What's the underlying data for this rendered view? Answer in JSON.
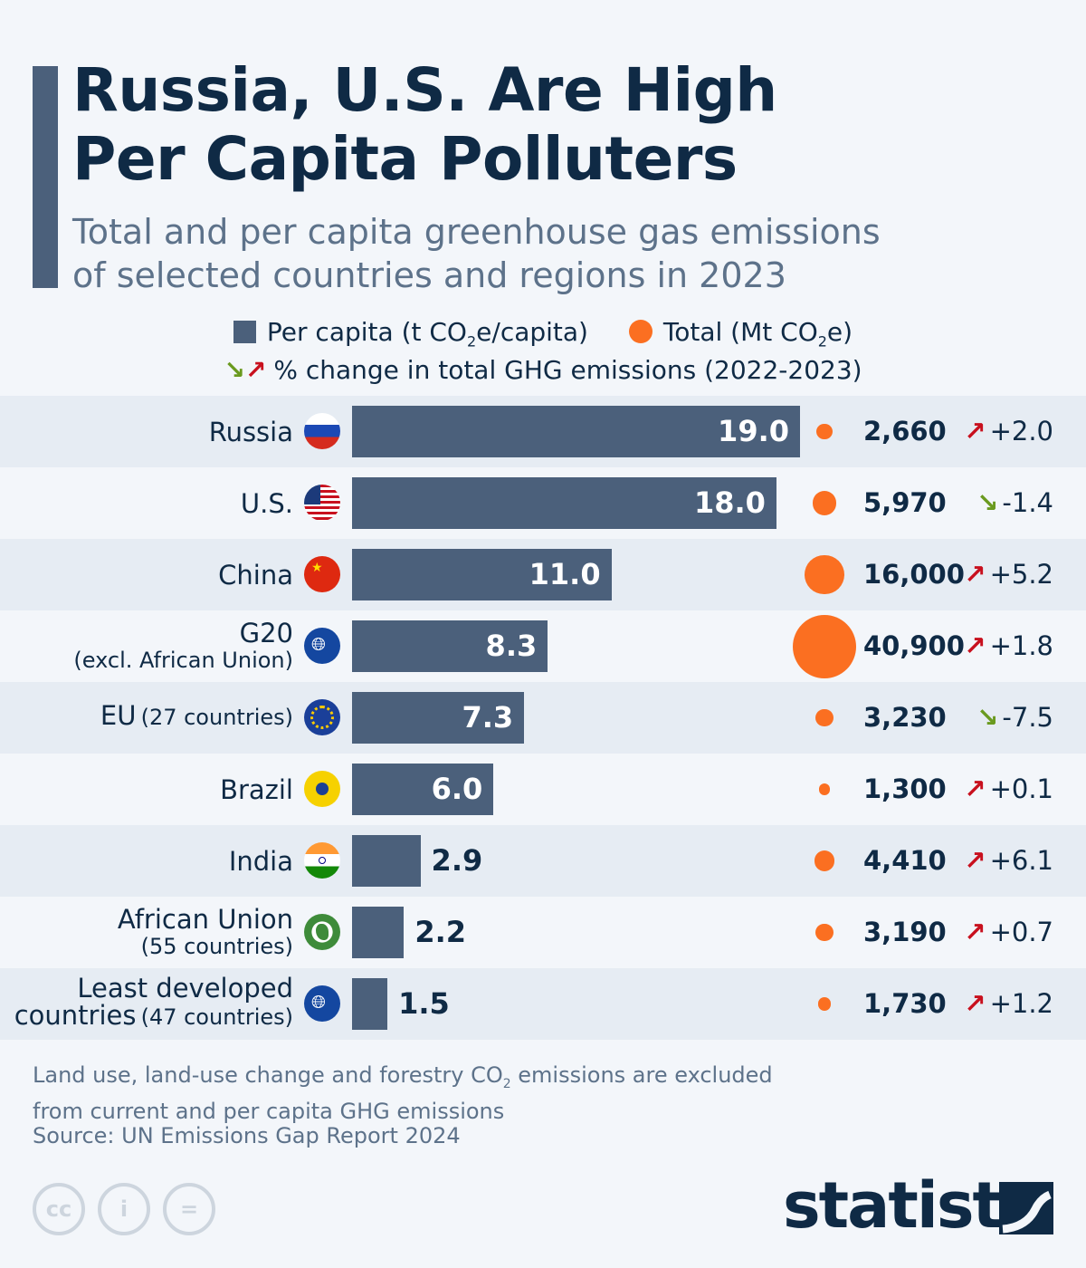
{
  "header": {
    "title_line1": "Russia, U.S. Are High",
    "title_line2": "Per Capita Polluters",
    "subtitle_line1": "Total and per capita greenhouse gas emissions",
    "subtitle_line2": "of selected countries and regions in 2023"
  },
  "legend": {
    "per_capita_pre": "Per capita (t CO",
    "per_capita_sub": "2",
    "per_capita_post": "e/capita)",
    "total_pre": "Total (Mt CO",
    "total_sub": "2",
    "total_post": "e)",
    "change": "% change in total GHG emissions (2022-2023)"
  },
  "colors": {
    "bar": "#4b607b",
    "bubble": "#fb6f21",
    "up": "#c8101e",
    "down": "#6a9a1f",
    "text": "#0f2a45"
  },
  "chart_data": {
    "type": "bar",
    "categories": [
      "Russia",
      "U.S.",
      "China",
      "G20 (excl. African Union)",
      "EU (27 countries)",
      "Brazil",
      "India",
      "African Union (55 countries)",
      "Least developed countries (47 countries)"
    ],
    "series": [
      {
        "name": "Per capita (t CO2e/capita)",
        "values": [
          19.0,
          18.0,
          11.0,
          8.3,
          7.3,
          6.0,
          2.9,
          2.2,
          1.5
        ]
      },
      {
        "name": "Total (Mt CO2e)",
        "values": [
          2660,
          5970,
          16000,
          40900,
          3230,
          1300,
          4410,
          3190,
          1730
        ]
      },
      {
        "name": "% change in total GHG emissions (2022-2023)",
        "values": [
          2.0,
          -1.4,
          5.2,
          1.8,
          -7.5,
          0.1,
          6.1,
          0.7,
          1.2
        ]
      }
    ],
    "rows": [
      {
        "main": "Russia",
        "sub": "",
        "inline": false,
        "flag": "russia",
        "pc": "19.0",
        "total": "2,660",
        "change": "+2.0",
        "dir": "up"
      },
      {
        "main": "U.S.",
        "sub": "",
        "inline": false,
        "flag": "usa",
        "pc": "18.0",
        "total": "5,970",
        "change": "-1.4",
        "dir": "down"
      },
      {
        "main": "China",
        "sub": "",
        "inline": false,
        "flag": "china",
        "pc": "11.0",
        "total": "16,000",
        "change": "+5.2",
        "dir": "up"
      },
      {
        "main": "G20",
        "sub": "(excl. African Union)",
        "inline": false,
        "flag": "globe",
        "pc": "8.3",
        "total": "40,900",
        "change": "+1.8",
        "dir": "up"
      },
      {
        "main": "EU",
        "sub": "(27 countries)",
        "inline": true,
        "flag": "eu",
        "pc": "7.3",
        "total": "3,230",
        "change": "-7.5",
        "dir": "down"
      },
      {
        "main": "Brazil",
        "sub": "",
        "inline": false,
        "flag": "brazil",
        "pc": "6.0",
        "total": "1,300",
        "change": "+0.1",
        "dir": "up"
      },
      {
        "main": "India",
        "sub": "",
        "inline": false,
        "flag": "india",
        "pc": "2.9",
        "total": "4,410",
        "change": "+6.1",
        "dir": "up"
      },
      {
        "main": "African Union",
        "sub": "(55 countries)",
        "inline": false,
        "flag": "au",
        "pc": "2.2",
        "total": "3,190",
        "change": "+0.7",
        "dir": "up"
      },
      {
        "main": "Least developed",
        "main2": "countries",
        "sub": "(47 countries)",
        "inline": true,
        "flag": "globe",
        "pc": "1.5",
        "total": "1,730",
        "change": "+1.2",
        "dir": "up"
      }
    ]
  },
  "footer": {
    "note_line1_pre": "Land use, land-use change and forestry CO",
    "note_sub": "2",
    "note_line1_post": " emissions are excluded",
    "note_line2": "from current and per capita GHG emissions",
    "source": "Source: UN Emissions Gap Report 2024",
    "logo": "statista",
    "cc_icons": [
      "cc",
      "by",
      "nd"
    ]
  }
}
